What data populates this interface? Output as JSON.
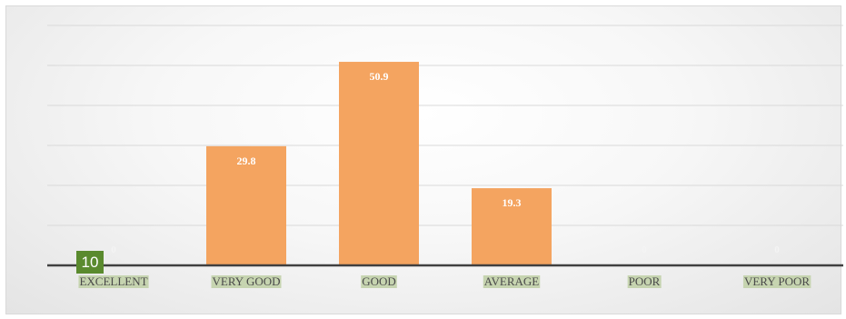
{
  "chart_data": {
    "type": "bar",
    "categories": [
      "EXCELLENT",
      "VERY GOOD",
      "GOOD",
      "AVERAGE",
      "POOR",
      "VERY POOR"
    ],
    "values": [
      0,
      29.8,
      50.9,
      19.3,
      0,
      0
    ],
    "data_labels": [
      "0",
      "29.8",
      "50.9",
      "19.3",
      "0",
      "0"
    ],
    "ylim": [
      0,
      60
    ],
    "grid": true,
    "bar_color": "#f4a460",
    "label_highlight_color": "#c6d4b0",
    "axis_color": "#404040",
    "grid_color": "#d9d9d9"
  },
  "badge": {
    "text": "10",
    "color": "#5a8a2e"
  }
}
